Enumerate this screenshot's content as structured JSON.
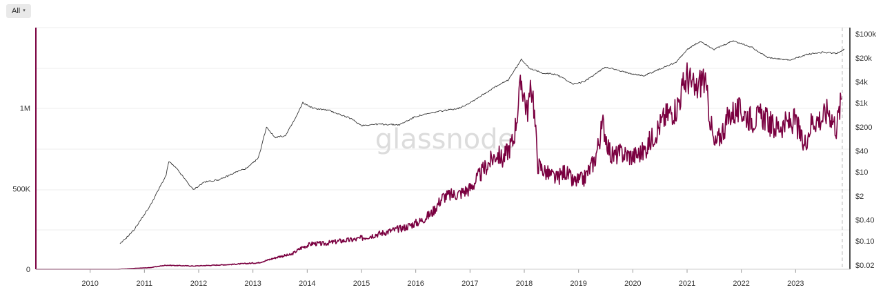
{
  "controls": {
    "range_label": "All",
    "range_caret": "▾"
  },
  "watermark": "glassnode",
  "colors": {
    "primary": "#7a0040",
    "price": "#333333",
    "grid": "#eeeeee"
  },
  "chart_data": {
    "type": "line",
    "grid": true,
    "x_ticks": [
      "2010",
      "2011",
      "2012",
      "2013",
      "2014",
      "2015",
      "2016",
      "2017",
      "2018",
      "2019",
      "2020",
      "2021",
      "2022",
      "2023"
    ],
    "y_left": {
      "ticks": [
        "0",
        "500K",
        "1M"
      ],
      "values": [
        0,
        500000,
        1000000
      ],
      "range": [
        0,
        1500000
      ]
    },
    "y_right": {
      "scale": "log",
      "ticks": [
        "$0.02",
        "$0.10",
        "$0.40",
        "$2",
        "$10",
        "$40",
        "$200",
        "$1k",
        "$4k",
        "$20k",
        "$100k"
      ],
      "values": [
        0.02,
        0.1,
        0.4,
        2,
        10,
        40,
        200,
        1000,
        4000,
        20000,
        100000
      ]
    },
    "series": [
      {
        "axis": "left",
        "color": "#7a0040",
        "points": [
          [
            2009.0,
            0
          ],
          [
            2010.5,
            0
          ],
          [
            2011.1,
            10000
          ],
          [
            2011.4,
            25000
          ],
          [
            2011.7,
            22000
          ],
          [
            2011.9,
            20000
          ],
          [
            2012.2,
            24000
          ],
          [
            2012.5,
            28000
          ],
          [
            2012.7,
            32000
          ],
          [
            2012.9,
            36000
          ],
          [
            2013.1,
            40000
          ],
          [
            2013.3,
            60000
          ],
          [
            2013.5,
            80000
          ],
          [
            2013.7,
            90000
          ],
          [
            2013.9,
            135000
          ],
          [
            2014.1,
            160000
          ],
          [
            2014.3,
            158000
          ],
          [
            2014.6,
            175000
          ],
          [
            2014.9,
            185000
          ],
          [
            2015.2,
            210000
          ],
          [
            2015.5,
            235000
          ],
          [
            2015.8,
            260000
          ],
          [
            2016.1,
            300000
          ],
          [
            2016.3,
            350000
          ],
          [
            2016.5,
            450000
          ],
          [
            2016.8,
            470000
          ],
          [
            2017.0,
            500000
          ],
          [
            2017.3,
            640000
          ],
          [
            2017.5,
            720000
          ],
          [
            2017.6,
            680000
          ],
          [
            2017.8,
            800000
          ],
          [
            2017.95,
            1170000
          ],
          [
            2018.05,
            980000
          ],
          [
            2018.15,
            1140000
          ],
          [
            2018.25,
            650000
          ],
          [
            2018.4,
            600000
          ],
          [
            2018.6,
            560000
          ],
          [
            2018.75,
            610000
          ],
          [
            2018.9,
            540000
          ],
          [
            2019.1,
            560000
          ],
          [
            2019.3,
            680000
          ],
          [
            2019.45,
            900000
          ],
          [
            2019.6,
            700000
          ],
          [
            2019.8,
            720000
          ],
          [
            2020.0,
            700000
          ],
          [
            2020.2,
            730000
          ],
          [
            2020.4,
            840000
          ],
          [
            2020.6,
            950000
          ],
          [
            2020.8,
            1000000
          ],
          [
            2021.0,
            1200000
          ],
          [
            2021.15,
            1100000
          ],
          [
            2021.3,
            1200000
          ],
          [
            2021.4,
            1000000
          ],
          [
            2021.5,
            760000
          ],
          [
            2021.6,
            820000
          ],
          [
            2021.8,
            970000
          ],
          [
            2022.0,
            980000
          ],
          [
            2022.2,
            930000
          ],
          [
            2022.4,
            950000
          ],
          [
            2022.6,
            880000
          ],
          [
            2022.8,
            900000
          ],
          [
            2023.0,
            920000
          ],
          [
            2023.15,
            760000
          ],
          [
            2023.3,
            920000
          ],
          [
            2023.5,
            940000
          ],
          [
            2023.6,
            990000
          ],
          [
            2023.75,
            880000
          ],
          [
            2023.85,
            1060000
          ]
        ]
      },
      {
        "axis": "right",
        "color": "#333333",
        "points": [
          [
            2010.55,
            0.08
          ],
          [
            2010.8,
            0.2
          ],
          [
            2011.1,
            1
          ],
          [
            2011.4,
            8
          ],
          [
            2011.45,
            20
          ],
          [
            2011.6,
            12
          ],
          [
            2011.9,
            3
          ],
          [
            2012.1,
            5
          ],
          [
            2012.4,
            6
          ],
          [
            2012.7,
            10
          ],
          [
            2012.9,
            13
          ],
          [
            2013.1,
            25
          ],
          [
            2013.25,
            200
          ],
          [
            2013.4,
            100
          ],
          [
            2013.6,
            110
          ],
          [
            2013.8,
            400
          ],
          [
            2013.92,
            1000
          ],
          [
            2014.1,
            700
          ],
          [
            2014.4,
            600
          ],
          [
            2014.8,
            350
          ],
          [
            2015.0,
            220
          ],
          [
            2015.3,
            240
          ],
          [
            2015.7,
            230
          ],
          [
            2016.0,
            400
          ],
          [
            2016.4,
            550
          ],
          [
            2016.8,
            700
          ],
          [
            2017.0,
            1000
          ],
          [
            2017.4,
            2500
          ],
          [
            2017.7,
            4500
          ],
          [
            2017.95,
            18000
          ],
          [
            2018.1,
            10000
          ],
          [
            2018.3,
            7500
          ],
          [
            2018.6,
            6500
          ],
          [
            2018.9,
            3500
          ],
          [
            2019.1,
            4000
          ],
          [
            2019.5,
            11000
          ],
          [
            2019.8,
            8000
          ],
          [
            2020.2,
            6000
          ],
          [
            2020.5,
            9500
          ],
          [
            2020.8,
            15000
          ],
          [
            2021.0,
            35000
          ],
          [
            2021.25,
            60000
          ],
          [
            2021.5,
            35000
          ],
          [
            2021.85,
            62000
          ],
          [
            2022.2,
            40000
          ],
          [
            2022.5,
            20000
          ],
          [
            2022.9,
            17000
          ],
          [
            2023.2,
            25000
          ],
          [
            2023.5,
            29000
          ],
          [
            2023.75,
            27000
          ],
          [
            2023.9,
            35000
          ]
        ]
      }
    ]
  }
}
